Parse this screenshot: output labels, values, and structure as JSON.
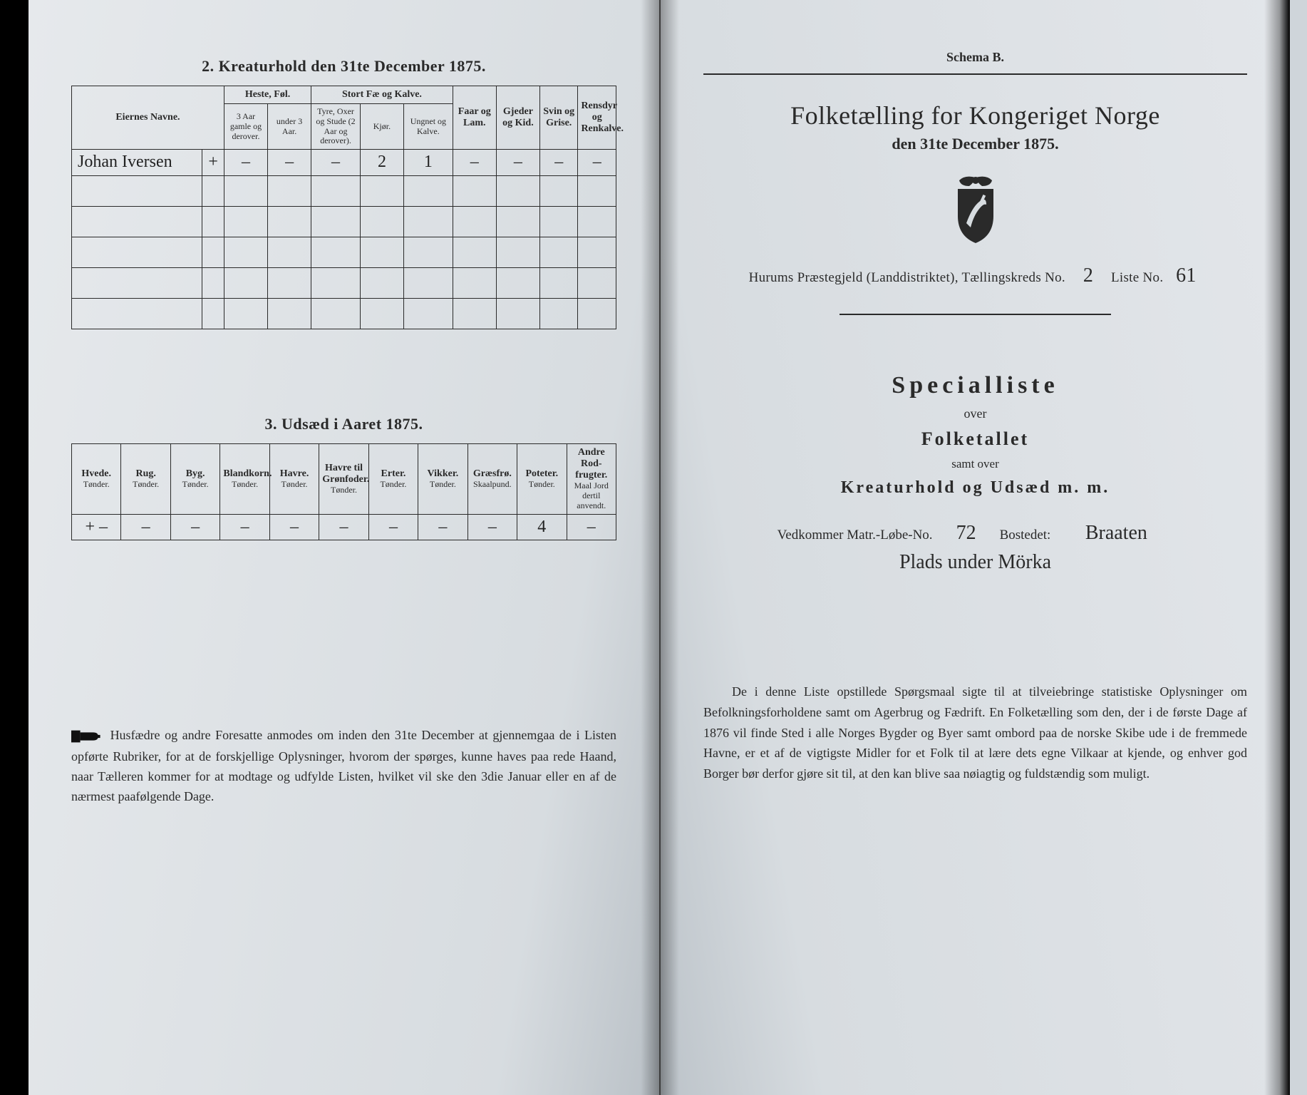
{
  "left": {
    "section2": {
      "title": "2.  Kreaturhold den 31te December 1875.",
      "colgroups": {
        "owner": "Eiernes Navne.",
        "horses": "Heste, Føl.",
        "cattle": "Stort Fæ og Kalve.",
        "sheep": "Faar og Lam.",
        "goats": "Gjeder og Kid.",
        "pigs": "Svin og Grise.",
        "reindeer": "Rensdyr og Renkalve."
      },
      "subcols": {
        "horses_a": "3 Aar gamle og derover.",
        "horses_b": "under 3 Aar.",
        "cattle_a": "Tyre, Oxer og Stude (2 Aar og derover).",
        "cattle_b": "Kjør.",
        "cattle_c": "Ungnet og Kalve."
      },
      "row": {
        "owner": "Johan Iversen",
        "mark": "+",
        "h1": "–",
        "h2": "–",
        "c1": "–",
        "c2": "2",
        "c3": "1",
        "sheep": "–",
        "goats": "–",
        "pigs": "–",
        "rein": "–"
      }
    },
    "section3": {
      "title": "3.  Udsæd i Aaret 1875.",
      "cols": [
        {
          "h": "Hvede.",
          "s": "Tønder."
        },
        {
          "h": "Rug.",
          "s": "Tønder."
        },
        {
          "h": "Byg.",
          "s": "Tønder."
        },
        {
          "h": "Blandkorn.",
          "s": "Tønder."
        },
        {
          "h": "Havre.",
          "s": "Tønder."
        },
        {
          "h": "Havre til Grønfoder.",
          "s": "Tønder."
        },
        {
          "h": "Erter.",
          "s": "Tønder."
        },
        {
          "h": "Vikker.",
          "s": "Tønder."
        },
        {
          "h": "Græsfrø.",
          "s": "Skaalpund."
        },
        {
          "h": "Poteter.",
          "s": "Tønder."
        },
        {
          "h": "Andre Rod-frugter.",
          "s": "Maal Jord dertil anvendt."
        }
      ],
      "row": [
        "+ –",
        "–",
        "–",
        "–",
        "–",
        "–",
        "–",
        "–",
        "–",
        "4",
        "–"
      ]
    },
    "footnote": "Husfædre og andre Foresatte anmodes om inden den 31te December at gjennemgaa de i Listen opførte Rubriker, for at de forskjellige Oplysninger, hvorom der spørges, kunne haves paa rede Haand, naar Tælleren kommer for at modtage og udfylde Listen, hvilket vil ske den 3die Januar eller en af de nærmest paafølgende Dage."
  },
  "right": {
    "schema": "Schema B.",
    "title1": "Folketælling for Kongeriget Norge",
    "title2": "den 31te December 1875.",
    "district_line": {
      "prefix": "Hurums Præstegjeld (Landdistriktet),  Tællingskreds No.",
      "kreds": "2",
      "liste_label": "Liste No.",
      "liste": "61"
    },
    "spec": "Specialliste",
    "over": "over",
    "folketallet": "Folketallet",
    "samt": "samt over",
    "ku": "Kreaturhold og Udsæd m. m.",
    "vedline": {
      "a": "Vedkommer Matr.-Løbe-No.",
      "num": "72",
      "b": "Bostedet:",
      "place1": "Braaten",
      "place2": "Plads under Mörka"
    },
    "para": "De i denne Liste opstillede Spørgsmaal sigte til at tilveiebringe statistiske Oplysninger om Befolkningsforholdene samt om Agerbrug og Fædrift.  En Folketælling som den, der i de første Dage af 1876 vil finde Sted i alle Norges Bygder og Byer samt ombord paa de norske Skibe ude i de fremmede Havne, er et af de vigtigste Midler for et Folk til at lære dets egne Vilkaar at kjende, og enhver god Borger bør derfor gjøre sit til, at den kan blive saa nøiagtig og fuldstændig som muligt."
  }
}
